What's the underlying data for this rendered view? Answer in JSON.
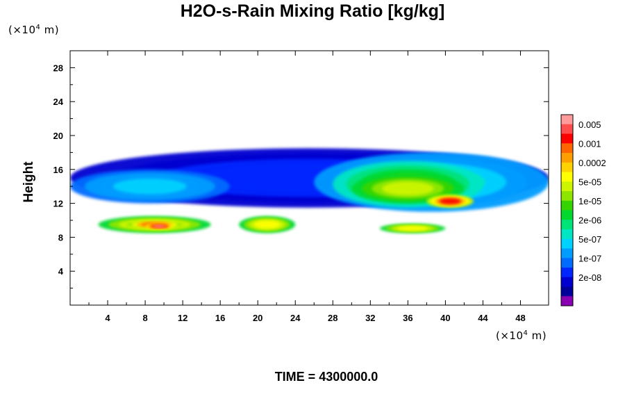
{
  "title": "H2O-s-Rain Mixing Ratio [kg/kg]",
  "time_label": "TIME = 4300000.0",
  "y_unit": {
    "prefix": "(×10",
    "exp": "4",
    "suffix": " m)"
  },
  "x_unit": {
    "prefix": "(×10",
    "exp": "4",
    "suffix": " m)"
  },
  "chart_data": {
    "type": "heatmap",
    "title": "H2O-s-Rain Mixing Ratio [kg/kg]",
    "xlabel": "",
    "ylabel": "Height",
    "x_ticks": [
      "4",
      "8",
      "12",
      "16",
      "20",
      "24",
      "28",
      "32",
      "36",
      "40",
      "44",
      "48"
    ],
    "y_ticks": [
      "4",
      "8",
      "12",
      "16",
      "20",
      "24",
      "28"
    ],
    "xlim": [
      0,
      51
    ],
    "ylim": [
      0,
      30
    ],
    "grid": false,
    "legend_placement": "right",
    "colorbar": {
      "labels": [
        "0.005",
        "0.001",
        "0.0002",
        "5e-05",
        "1e-05",
        "2e-06",
        "5e-07",
        "1e-07",
        "2e-08"
      ],
      "colors": [
        "#ff9b9b",
        "#ff4c4c",
        "#ff0000",
        "#ff6600",
        "#ff9e00",
        "#ffd200",
        "#ffff00",
        "#cdf500",
        "#8ee600",
        "#35d400",
        "#00d830",
        "#00e27a",
        "#00e6c4",
        "#00d2ff",
        "#009cff",
        "#006cff",
        "#0026ff",
        "#0000d0",
        "#00009a",
        "#8c00b4"
      ]
    },
    "regions": [
      {
        "level": 0.15,
        "x": [
          0,
          51
        ],
        "y": [
          11.5,
          18.5
        ]
      },
      {
        "level": 0.3,
        "x": [
          0,
          17
        ],
        "y": [
          12,
          16
        ]
      },
      {
        "level": 0.35,
        "x": [
          26,
          51
        ],
        "y": [
          11,
          18
        ]
      },
      {
        "level": 0.55,
        "x": [
          28,
          44
        ],
        "y": [
          11.5,
          17
        ]
      },
      {
        "level": 0.65,
        "x": [
          30,
          42
        ],
        "y": [
          12,
          15.5
        ]
      },
      {
        "level": 0.88,
        "x": [
          38,
          43
        ],
        "y": [
          11.5,
          13
        ]
      },
      {
        "level": 0.7,
        "x": [
          3,
          15
        ],
        "y": [
          8.5,
          10.5
        ]
      },
      {
        "level": 0.85,
        "x": [
          6,
          12
        ],
        "y": [
          9,
          10
        ]
      },
      {
        "level": 0.98,
        "x": [
          8,
          11
        ],
        "y": [
          9,
          9.6
        ]
      },
      {
        "level": 0.7,
        "x": [
          18,
          24
        ],
        "y": [
          8.5,
          10.5
        ]
      },
      {
        "level": 0.7,
        "x": [
          33,
          40
        ],
        "y": [
          8.5,
          9.6
        ]
      }
    ]
  }
}
